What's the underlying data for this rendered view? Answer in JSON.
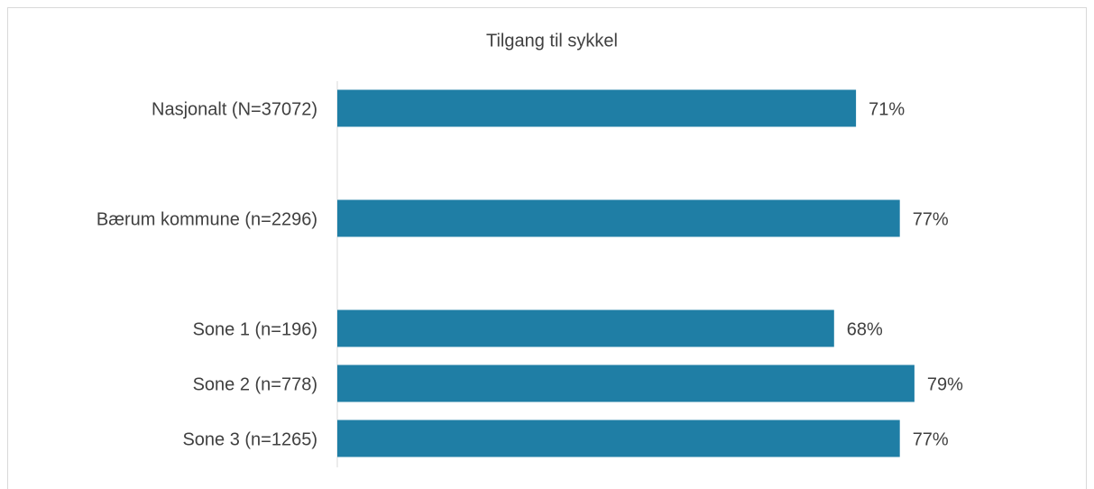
{
  "chart_data": {
    "type": "bar",
    "orientation": "horizontal",
    "title": "Tilgang til sykkel",
    "categories": [
      "Nasjonalt (N=37072)",
      null,
      "Bærum kommune (n=2296)",
      null,
      "Sone 1 (n=196)",
      "Sone 2 (n=778)",
      "Sone 3 (n=1265)"
    ],
    "values": [
      71,
      null,
      77,
      null,
      68,
      79,
      77
    ],
    "value_labels": [
      "71%",
      null,
      "77%",
      null,
      "68%",
      "79%",
      "77%"
    ],
    "color": "#1f7ea5",
    "xlim": [
      0,
      100
    ]
  }
}
